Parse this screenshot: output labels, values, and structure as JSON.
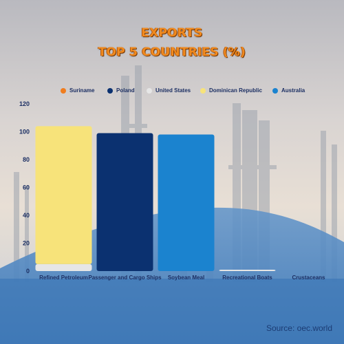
{
  "header": {
    "title_line1": "EXPORTS",
    "title_line2": "TOP 5 COUNTRIES (%)"
  },
  "source": "Source: oec.world",
  "colors": {
    "title": "#f08a1f",
    "axis_text": "#1c2f63"
  },
  "chart_data": {
    "type": "bar",
    "stacked": true,
    "title": "EXPORTS TOP 5 COUNTRIES (%)",
    "categories": [
      "Refined Petroleum",
      "Passenger and Cargo Ships",
      "Soybean Meal",
      "Recreational Boats",
      "Crustaceans"
    ],
    "series": [
      {
        "name": "Suriname",
        "color": "#f07d1e",
        "values": [
          0,
          0,
          0,
          0,
          0
        ]
      },
      {
        "name": "Poland",
        "color": "#0b3170",
        "values": [
          0,
          99,
          0,
          0,
          0
        ]
      },
      {
        "name": "United States",
        "color": "#e6e6e6",
        "values": [
          5,
          0,
          0,
          1,
          0
        ]
      },
      {
        "name": "Dominican Republic",
        "color": "#f7e37a",
        "values": [
          99,
          0,
          0,
          0,
          0
        ]
      },
      {
        "name": "Australia",
        "color": "#1b83cf",
        "values": [
          0,
          0,
          98,
          0,
          0
        ]
      }
    ],
    "ylim": [
      0,
      120
    ],
    "yticks": [
      0,
      20,
      40,
      60,
      80,
      100,
      120
    ],
    "grid": false,
    "legend": "top"
  }
}
